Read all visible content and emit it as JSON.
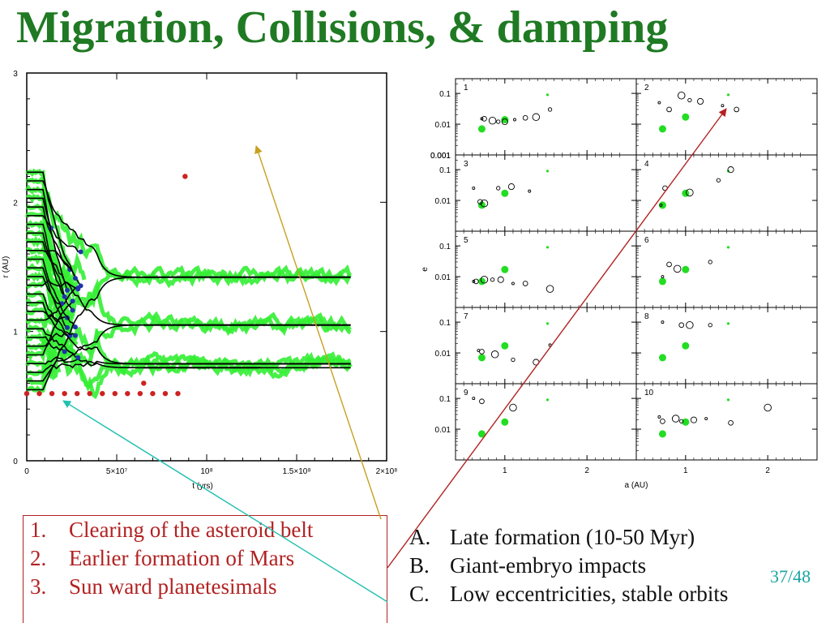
{
  "title": "Migration, Collisions, & damping",
  "left_chart": {
    "type": "line",
    "xlabel": "t (yrs)",
    "ylabel": "r (AU)",
    "xlim": [
      0,
      200000000
    ],
    "ylim": [
      0,
      3
    ],
    "xticks": [
      "0",
      "5×10⁷",
      "10⁸",
      "1.5×10⁸",
      "2×10⁸"
    ],
    "xtick_values": [
      0,
      50000000,
      100000000,
      150000000,
      200000000
    ],
    "yticks": [
      "0",
      "1",
      "2",
      "3"
    ],
    "ytick_values": [
      0,
      1,
      2,
      3
    ],
    "final_orbits": [
      {
        "r": 1.42,
        "until": 180000000
      },
      {
        "r": 1.05,
        "until": 180000000
      },
      {
        "r": 0.75,
        "until": 180000000
      },
      {
        "r": 0.72,
        "until": 130000000
      }
    ],
    "colors": {
      "track": "#000000",
      "scatter": "#33ee33",
      "collision": "#cc2222",
      "embryo": "#2233aa"
    }
  },
  "right_chart": {
    "type": "scatter",
    "xlabel": "a (AU)",
    "ylabel": "e",
    "xlim": [
      0.4,
      2.6
    ],
    "ylim": [
      0.001,
      0.3
    ],
    "yscale": "log",
    "xticks": [
      "1",
      "2"
    ],
    "xtick_values": [
      1,
      2
    ],
    "yticks": [
      "0.1",
      "0.01",
      "0.001"
    ],
    "ytick_values": [
      0.1,
      0.01,
      0.001
    ],
    "panels": [
      {
        "label": "1",
        "planets": [
          [
            0.72,
            0.015
          ],
          [
            0.75,
            0.015
          ],
          [
            0.85,
            0.013
          ],
          [
            0.92,
            0.012
          ],
          [
            1.0,
            0.012
          ],
          [
            1.12,
            0.014
          ],
          [
            1.25,
            0.016
          ],
          [
            1.38,
            0.017
          ],
          [
            1.55,
            0.03
          ]
        ],
        "solar": [
          [
            0.72,
            0.007
          ],
          [
            1.0,
            0.014
          ],
          [
            1.52,
            0.09
          ]
        ]
      },
      {
        "label": "2",
        "planets": [
          [
            0.68,
            0.05
          ],
          [
            0.8,
            0.03
          ],
          [
            0.95,
            0.085
          ],
          [
            1.05,
            0.06
          ],
          [
            1.18,
            0.055
          ],
          [
            1.45,
            0.04
          ],
          [
            1.62,
            0.03
          ]
        ],
        "solar": [
          [
            0.72,
            0.007
          ],
          [
            1.0,
            0.017
          ],
          [
            1.52,
            0.09
          ]
        ]
      },
      {
        "label": "3",
        "planets": [
          [
            0.62,
            0.025
          ],
          [
            0.7,
            0.009
          ],
          [
            0.75,
            0.008
          ],
          [
            0.92,
            0.025
          ],
          [
            1.08,
            0.028
          ],
          [
            1.3,
            0.02
          ]
        ],
        "solar": [
          [
            0.72,
            0.007
          ],
          [
            1.0,
            0.017
          ],
          [
            1.52,
            0.09
          ]
        ]
      },
      {
        "label": "4",
        "planets": [
          [
            0.7,
            0.007
          ],
          [
            0.75,
            0.025
          ],
          [
            1.05,
            0.018
          ],
          [
            1.4,
            0.045
          ],
          [
            1.55,
            0.1
          ]
        ],
        "solar": [
          [
            0.72,
            0.007
          ],
          [
            1.0,
            0.017
          ],
          [
            1.52,
            0.09
          ]
        ]
      },
      {
        "label": "5",
        "planets": [
          [
            0.62,
            0.007
          ],
          [
            0.65,
            0.007
          ],
          [
            0.75,
            0.008
          ],
          [
            0.85,
            0.008
          ],
          [
            0.95,
            0.008
          ],
          [
            1.1,
            0.006
          ],
          [
            1.25,
            0.006
          ],
          [
            1.55,
            0.004
          ]
        ],
        "solar": [
          [
            0.72,
            0.007
          ],
          [
            1.0,
            0.017
          ],
          [
            1.52,
            0.09
          ]
        ]
      },
      {
        "label": "6",
        "planets": [
          [
            0.72,
            0.01
          ],
          [
            0.8,
            0.025
          ],
          [
            0.9,
            0.018
          ],
          [
            1.3,
            0.03
          ]
        ],
        "solar": [
          [
            0.72,
            0.007
          ],
          [
            1.0,
            0.017
          ],
          [
            1.52,
            0.09
          ]
        ]
      },
      {
        "label": "7",
        "planets": [
          [
            0.68,
            0.012
          ],
          [
            0.72,
            0.011
          ],
          [
            0.88,
            0.009
          ],
          [
            1.1,
            0.006
          ],
          [
            1.38,
            0.005
          ],
          [
            1.55,
            0.018
          ]
        ],
        "solar": [
          [
            0.72,
            0.007
          ],
          [
            1.0,
            0.017
          ],
          [
            1.52,
            0.09
          ]
        ]
      },
      {
        "label": "8",
        "planets": [
          [
            0.72,
            0.1
          ],
          [
            0.95,
            0.08
          ],
          [
            1.05,
            0.08
          ],
          [
            1.3,
            0.08
          ]
        ],
        "solar": [
          [
            0.72,
            0.007
          ],
          [
            1.0,
            0.017
          ],
          [
            1.52,
            0.09
          ]
        ]
      },
      {
        "label": "9",
        "planets": [
          [
            0.62,
            0.1
          ],
          [
            0.72,
            0.08
          ],
          [
            1.1,
            0.05
          ]
        ],
        "solar": [
          [
            0.72,
            0.007
          ],
          [
            1.0,
            0.017
          ],
          [
            1.52,
            0.09
          ]
        ]
      },
      {
        "label": "10",
        "planets": [
          [
            0.68,
            0.025
          ],
          [
            0.72,
            0.018
          ],
          [
            0.88,
            0.022
          ],
          [
            0.95,
            0.018
          ],
          [
            1.1,
            0.02
          ],
          [
            1.25,
            0.022
          ],
          [
            1.55,
            0.016
          ],
          [
            2.0,
            0.05
          ]
        ],
        "solar": [
          [
            0.72,
            0.007
          ],
          [
            1.0,
            0.017
          ],
          [
            1.52,
            0.09
          ]
        ]
      }
    ]
  },
  "points_list": [
    {
      "num": "1.",
      "text": "Clearing of the asteroid belt"
    },
    {
      "num": "2.",
      "text": "Earlier formation of Mars"
    },
    {
      "num": "3.",
      "text": "Sun ward planetesimals"
    }
  ],
  "outcomes_list": [
    {
      "num": "A.",
      "text": "Late formation (10-50 Myr)"
    },
    {
      "num": "B.",
      "text": "Giant-embryo impacts"
    },
    {
      "num": "C.",
      "text": "Low eccentricities, stable orbits"
    }
  ],
  "page_number": "37/48",
  "colors": {
    "title": "#1f7a23",
    "list_red": "#b22222",
    "arrow_gold": "#c8a020",
    "arrow_red": "#b22222",
    "arrow_teal": "#22c0b0",
    "page_teal": "#1aa3a3",
    "solar_green": "#22dd22"
  }
}
